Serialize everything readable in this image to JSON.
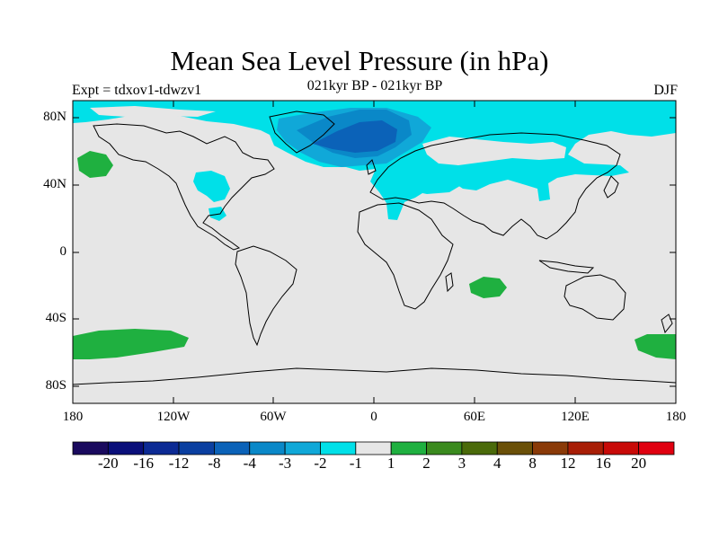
{
  "title": "Mean Sea Level Pressure (in hPa)",
  "subtitle_left": "Expt = tdxov1-tdwzv1",
  "subtitle_center": "021kyr BP - 021kyr BP",
  "subtitle_right": "DJF",
  "lat_labels": [
    "80N",
    "40N",
    "0",
    "40S",
    "80S"
  ],
  "lon_labels": [
    "180",
    "120W",
    "60W",
    "0",
    "60E",
    "120E",
    "180"
  ],
  "colorbar": {
    "labels": [
      "-20",
      "-16",
      "-12",
      "-8",
      "-4",
      "-3",
      "-2",
      "-1",
      "1",
      "2",
      "3",
      "4",
      "8",
      "12",
      "16",
      "20"
    ],
    "colors": [
      "#1a0a5e",
      "#0a0f7a",
      "#0c2a94",
      "#0a3fa0",
      "#0b62b8",
      "#0a88c8",
      "#10a8d8",
      "#00e0e8",
      "#e6e6e6",
      "#1fb040",
      "#3a8a1e",
      "#4a6a0a",
      "#6a5008",
      "#8a3a08",
      "#a81e06",
      "#c80a08",
      "#e00010"
    ]
  },
  "map_colors": {
    "background": "#e6e6e6",
    "negative_1": "#00e0e8",
    "negative_2": "#10a8d8",
    "negative_3": "#0a88c8",
    "negative_4": "#0b62b8",
    "positive_1": "#1fb040"
  }
}
